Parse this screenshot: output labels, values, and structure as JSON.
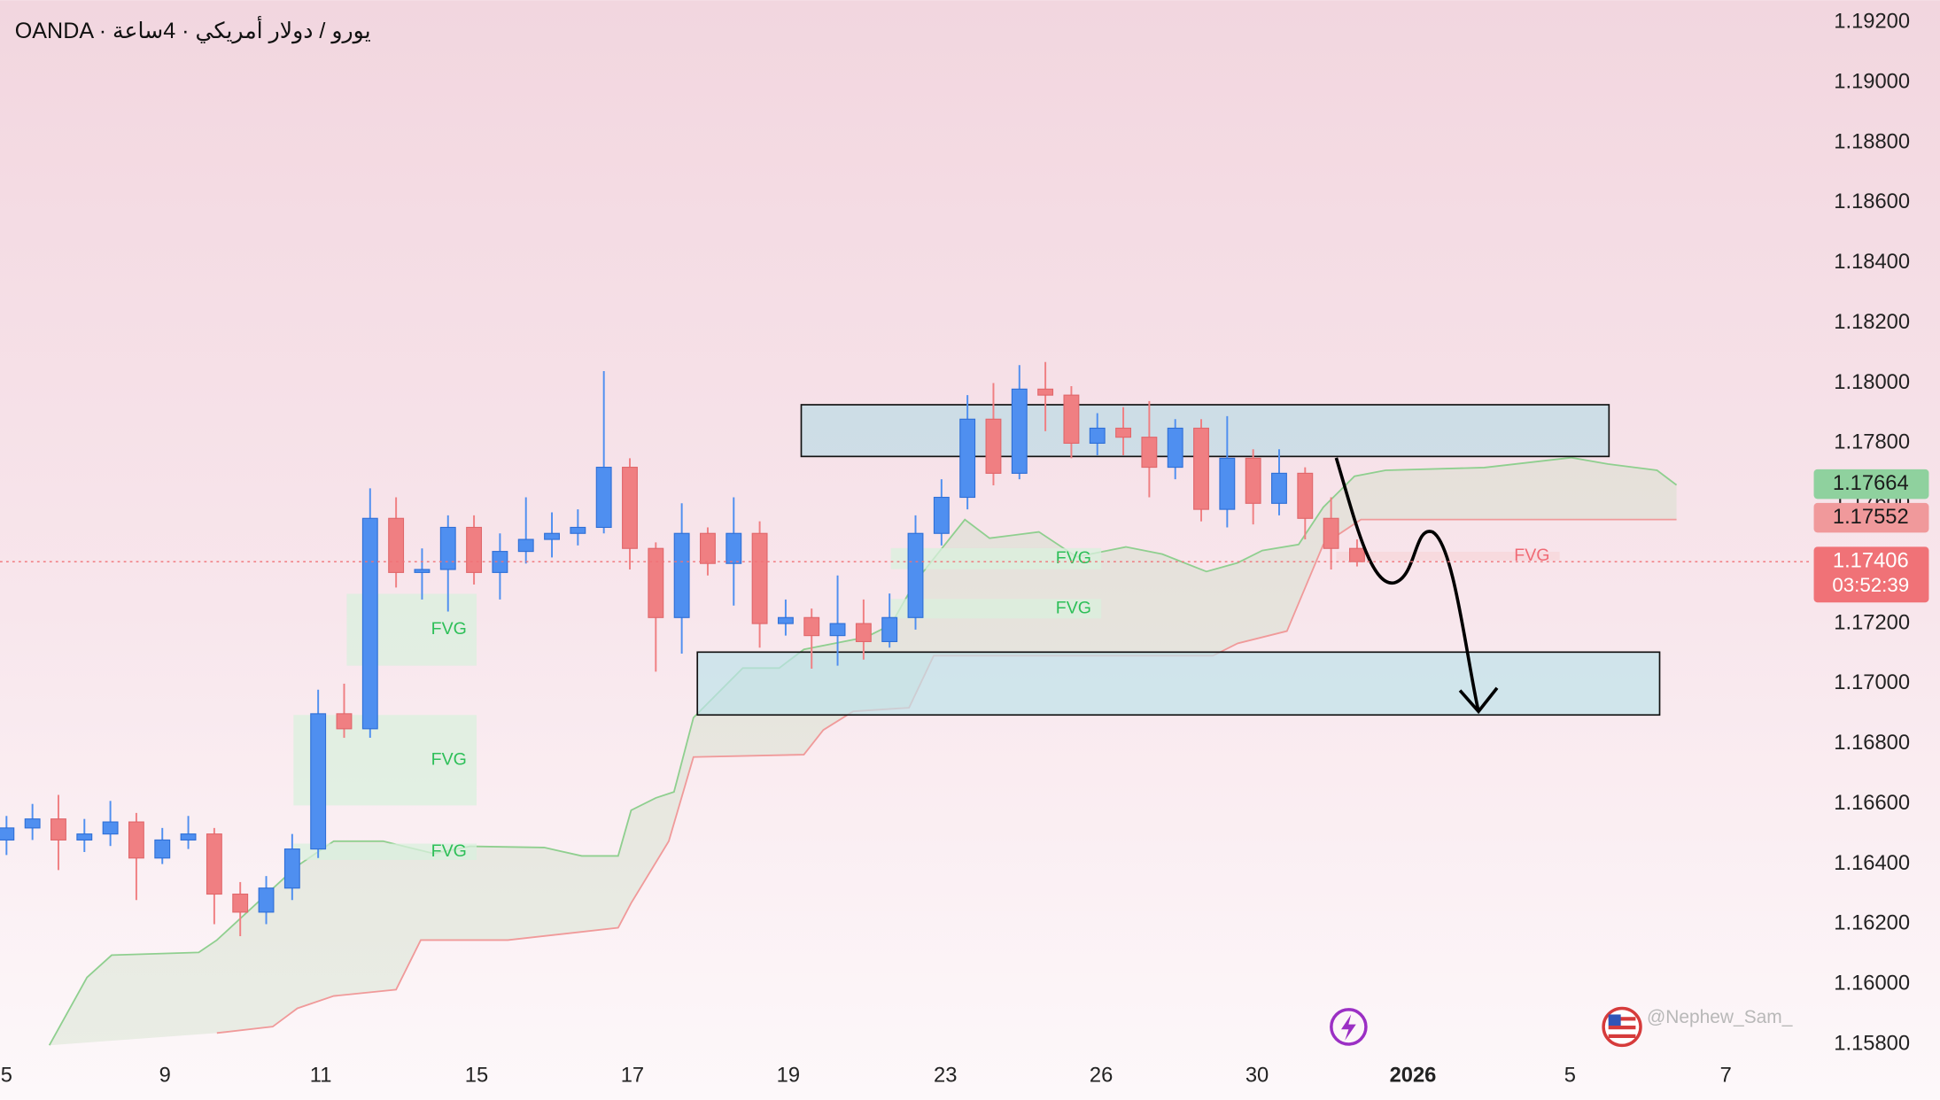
{
  "chart_data": {
    "type": "candlestick",
    "title": "OANDA · يورو / دولار أمريكي · 4ساعة",
    "watermark": "@Nephew_Sam_",
    "countdown": "03:52:39",
    "up_color": "#4f8ff0",
    "down_color": "#f07f82",
    "xlim": [
      -0.5,
      138.6
    ],
    "ylim": [
      1.15776,
      1.19274
    ],
    "xticks": [
      {
        "value": 0,
        "label": "5"
      },
      {
        "value": 12.2,
        "label": "9"
      },
      {
        "value": 24.2,
        "label": "11"
      },
      {
        "value": 36.2,
        "label": "15"
      },
      {
        "value": 48.2,
        "label": "17"
      },
      {
        "value": 60.2,
        "label": "19"
      },
      {
        "value": 72.3,
        "label": "23"
      },
      {
        "value": 84.3,
        "label": "26"
      },
      {
        "value": 96.3,
        "label": "30"
      },
      {
        "value": 108.3,
        "label": "2026"
      },
      {
        "value": 120.4,
        "label": "5"
      },
      {
        "value": 132.4,
        "label": "7"
      }
    ],
    "yticks": [
      {
        "value": 1.158,
        "label": "1.15800"
      },
      {
        "value": 1.16,
        "label": "1.16000"
      },
      {
        "value": 1.162,
        "label": "1.16200"
      },
      {
        "value": 1.164,
        "label": "1.16400"
      },
      {
        "value": 1.166,
        "label": "1.16600"
      },
      {
        "value": 1.168,
        "label": "1.16800"
      },
      {
        "value": 1.17,
        "label": "1.17000"
      },
      {
        "value": 1.172,
        "label": "1.17200"
      },
      {
        "value": 1.174,
        "label": "1.17400"
      },
      {
        "value": 1.176,
        "label": "1.17600"
      },
      {
        "value": 1.178,
        "label": "1.17800"
      },
      {
        "value": 1.18,
        "label": "1.18000"
      },
      {
        "value": 1.182,
        "label": "1.18200"
      },
      {
        "value": 1.184,
        "label": "1.18400"
      },
      {
        "value": 1.186,
        "label": "1.18600"
      },
      {
        "value": 1.188,
        "label": "1.18800"
      },
      {
        "value": 1.19,
        "label": "1.19000"
      },
      {
        "value": 1.192,
        "label": "1.19200"
      }
    ],
    "x": [
      0,
      2,
      4,
      6,
      8,
      10,
      12,
      14,
      16,
      18,
      20,
      22,
      24,
      26,
      28,
      30,
      32,
      34,
      36,
      38,
      40,
      42,
      44,
      46,
      48,
      50,
      52,
      54,
      56,
      58,
      60,
      62,
      64,
      66,
      68,
      70,
      72,
      74,
      76,
      78,
      80,
      82,
      84,
      86,
      88,
      90,
      92,
      94,
      96,
      98,
      100,
      102,
      104
    ],
    "open": [
      1.1648,
      1.1652,
      1.1655,
      1.1648,
      1.165,
      1.1654,
      1.1642,
      1.1648,
      1.165,
      1.163,
      1.1624,
      1.1632,
      1.1645,
      1.169,
      1.1685,
      1.1755,
      1.1737,
      1.1738,
      1.1752,
      1.1737,
      1.1744,
      1.1748,
      1.175,
      1.1752,
      1.1772,
      1.1745,
      1.1722,
      1.175,
      1.174,
      1.175,
      1.172,
      1.1722,
      1.1716,
      1.172,
      1.1714,
      1.1722,
      1.175,
      1.1762,
      1.1788,
      1.177,
      1.1798,
      1.1796,
      1.178,
      1.1785,
      1.1782,
      1.1772,
      1.1785,
      1.1758,
      1.1775,
      1.176,
      1.177,
      1.1755,
      1.1745
    ],
    "high": [
      1.1656,
      1.166,
      1.1663,
      1.1655,
      1.1661,
      1.1657,
      1.1652,
      1.1656,
      1.1652,
      1.1634,
      1.1636,
      1.165,
      1.1698,
      1.17,
      1.1765,
      1.1762,
      1.1745,
      1.1756,
      1.1756,
      1.175,
      1.1762,
      1.1757,
      1.1758,
      1.1804,
      1.1775,
      1.1747,
      1.176,
      1.1752,
      1.1762,
      1.1754,
      1.1728,
      1.1725,
      1.1736,
      1.1728,
      1.173,
      1.1756,
      1.1768,
      1.1796,
      1.18,
      1.1806,
      1.1807,
      1.1799,
      1.179,
      1.1792,
      1.1794,
      1.1788,
      1.1788,
      1.1789,
      1.1778,
      1.1778,
      1.1772,
      1.1762,
      1.1748
    ],
    "low": [
      1.1643,
      1.1648,
      1.1638,
      1.1644,
      1.1646,
      1.1628,
      1.164,
      1.1645,
      1.162,
      1.1616,
      1.162,
      1.1628,
      1.1642,
      1.1682,
      1.1682,
      1.1732,
      1.1728,
      1.1724,
      1.1733,
      1.1728,
      1.174,
      1.1742,
      1.1746,
      1.175,
      1.1738,
      1.1704,
      1.171,
      1.1736,
      1.1726,
      1.1712,
      1.1716,
      1.1705,
      1.1706,
      1.1708,
      1.1712,
      1.1718,
      1.1746,
      1.1758,
      1.1766,
      1.1768,
      1.1784,
      1.1775,
      1.1776,
      1.1776,
      1.1762,
      1.1768,
      1.1754,
      1.1752,
      1.1753,
      1.1756,
      1.1748,
      1.1738,
      1.1739
    ],
    "close": [
      1.1652,
      1.1655,
      1.1648,
      1.165,
      1.1654,
      1.1642,
      1.1648,
      1.165,
      1.163,
      1.1624,
      1.1632,
      1.1645,
      1.169,
      1.1685,
      1.1755,
      1.1737,
      1.1738,
      1.1752,
      1.1737,
      1.1744,
      1.1748,
      1.175,
      1.1752,
      1.1772,
      1.1745,
      1.1722,
      1.175,
      1.174,
      1.175,
      1.172,
      1.1722,
      1.1716,
      1.172,
      1.1714,
      1.1722,
      1.175,
      1.1762,
      1.1788,
      1.177,
      1.1798,
      1.1796,
      1.178,
      1.1785,
      1.1782,
      1.1772,
      1.1785,
      1.1758,
      1.1775,
      1.176,
      1.177,
      1.1755,
      1.1745,
      1.17406
    ],
    "lines": [
      {
        "color": "#8fcf8f",
        "x": [
          3.3,
          6.2,
          8.1,
          14.8,
          16.2,
          22.4,
          25.2,
          29.0,
          32.9,
          35.7,
          41.4,
          44.3,
          47.1,
          48.1,
          50.0,
          51.4,
          52.9,
          56.7,
          59.5,
          61.4,
          66.2,
          68.1,
          70.0,
          71.9,
          73.8,
          75.7,
          79.5,
          82.4,
          86.2,
          89.0,
          92.4,
          94.8,
          96.7,
          99.5,
          101.4,
          103.8,
          106.2,
          113.8,
          120.5,
          123.3,
          127.1,
          128.6
        ],
        "values": [
          1.15797,
          1.16023,
          1.16097,
          1.16106,
          1.16147,
          1.16394,
          1.16476,
          1.16476,
          1.16435,
          1.16459,
          1.16455,
          1.16427,
          1.16427,
          1.16579,
          1.1662,
          1.1664,
          1.16887,
          1.17052,
          1.17052,
          1.17114,
          1.17155,
          1.17196,
          1.1734,
          1.17443,
          1.17546,
          1.17484,
          1.17505,
          1.17422,
          1.17455,
          1.17431,
          1.17373,
          1.17402,
          1.17443,
          1.17463,
          1.17587,
          1.1769,
          1.1771,
          1.17719,
          1.17752,
          1.17731,
          1.1771,
          1.17661
        ]
      },
      {
        "color": "#f09a9a",
        "x": [
          16.2,
          20.5,
          22.4,
          25.2,
          30.0,
          31.9,
          38.6,
          47.1,
          48.1,
          51.0,
          52.9,
          61.4,
          62.9,
          65.2,
          69.5,
          71.4,
          92.9,
          94.8,
          98.6,
          100.0,
          101.4,
          104.3,
          128.6
        ],
        "values": [
          1.15838,
          1.15859,
          1.1592,
          1.15961,
          1.15982,
          1.16147,
          1.16147,
          1.16188,
          1.1627,
          1.16476,
          1.16756,
          1.16764,
          1.16846,
          1.16908,
          1.1692,
          1.17093,
          1.17093,
          1.17134,
          1.17175,
          1.17319,
          1.17463,
          1.17546,
          1.17546
        ]
      }
    ],
    "zones": [
      {
        "x": [
          61.2,
          123.4
        ],
        "y": [
          1.17756,
          1.17928
        ],
        "color": "#bcdbe6"
      },
      {
        "x": [
          53.2,
          127.3
        ],
        "y": [
          1.16896,
          1.17105
        ],
        "color": "#bfe3ea"
      }
    ],
    "fvgs": [
      {
        "label": "FVG",
        "x": [
          26.2,
          36.2
        ],
        "y": [
          1.1706,
          1.17299
        ],
        "color": "#d9f0dd",
        "text_color": "#2dbf58"
      },
      {
        "label": "FVG",
        "x": [
          22.1,
          36.2
        ],
        "y": [
          1.16595,
          1.16896
        ],
        "color": "#d9f0dd",
        "text_color": "#2dbf58"
      },
      {
        "label": "FVG",
        "x": [
          22.1,
          36.2
        ],
        "y": [
          1.16414,
          1.16468
        ],
        "color": "#d9f0dd",
        "text_color": "#2dbf58"
      },
      {
        "label": "FVG",
        "x": [
          68.1,
          84.3
        ],
        "y": [
          1.17381,
          1.17451
        ],
        "color": "#d9f0dd",
        "text_color": "#2dbf58"
      },
      {
        "label": "FVG",
        "x": [
          68.1,
          84.3
        ],
        "y": [
          1.17217,
          1.17282
        ],
        "color": "#d9f0dd",
        "text_color": "#2dbf58"
      },
      {
        "label": "FVG",
        "x": [
          102.4,
          119.6
        ],
        "y": [
          1.1741,
          1.17439
        ],
        "color": "#f7d6d9",
        "text_color": "#f06a75"
      }
    ],
    "price_labels": [
      {
        "value": 1.17664,
        "label": "1.17664",
        "color": "#8fd19e",
        "text_color": "#1b1b1b"
      },
      {
        "value": 1.17552,
        "label": "1.17552",
        "color": "#f0999b",
        "text_color": "#1b1b1b"
      },
      {
        "value": 1.17406,
        "label": "1.17406",
        "color": "#f07277",
        "text_color": "#ffffff"
      }
    ]
  }
}
